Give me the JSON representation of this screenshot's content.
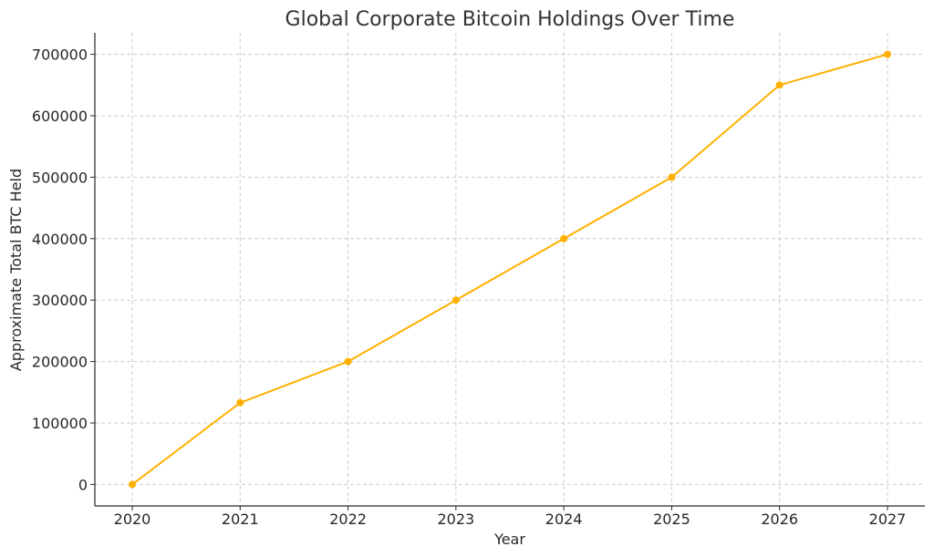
{
  "chart_data": {
    "type": "line",
    "title": "Global Corporate Bitcoin Holdings Over Time",
    "xlabel": "Year",
    "ylabel": "Approximate Total BTC Held",
    "x": [
      "2020",
      "2021",
      "2022",
      "2023",
      "2024",
      "2025",
      "2026",
      "2027"
    ],
    "series": [
      {
        "values": [
          0,
          133000,
          200000,
          300000,
          400000,
          500000,
          650000,
          700000
        ],
        "color": "#ffb000"
      }
    ],
    "yticks": [
      0,
      100000,
      200000,
      300000,
      400000,
      500000,
      600000,
      700000
    ],
    "ylim": [
      -35000,
      735000
    ],
    "grid": true,
    "markers": true
  }
}
